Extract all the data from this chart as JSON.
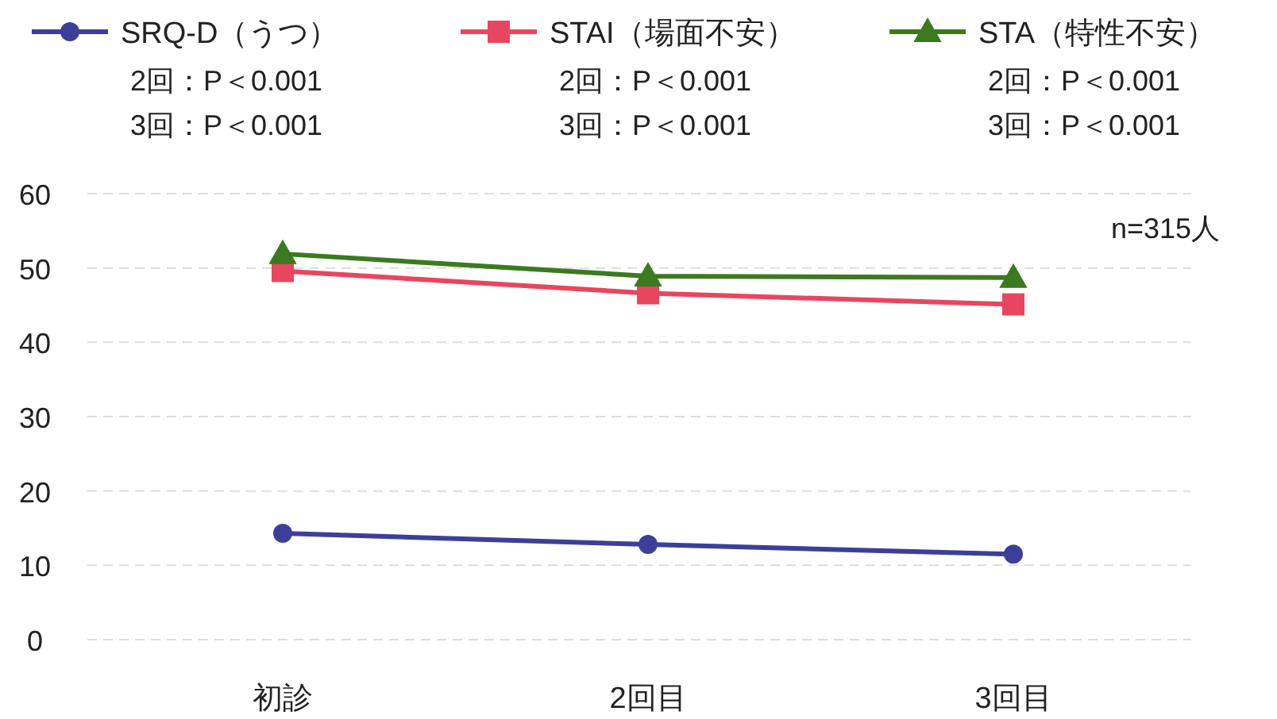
{
  "chart_data": {
    "type": "line",
    "categories": [
      "初診",
      "2回目",
      "3回目"
    ],
    "series": [
      {
        "name": "SRQ-D（うつ）",
        "color": "#3c3f99",
        "marker": "circle",
        "values": [
          14.3,
          12.8,
          11.5
        ]
      },
      {
        "name": "STAI（場面不安）",
        "color": "#e8465e",
        "marker": "square",
        "values": [
          49.6,
          46.6,
          45.1
        ]
      },
      {
        "name": "STA（特性不安）",
        "color": "#3b7a1f",
        "marker": "triangle",
        "values": [
          51.9,
          48.9,
          48.7
        ]
      }
    ],
    "ylim": [
      0,
      60
    ],
    "yticks": [
      0,
      10,
      20,
      30,
      40,
      50,
      60
    ],
    "grid": "y",
    "legend": "top",
    "annotations": [
      "2回：P＜0.001",
      "3回：P＜0.001",
      "2回：P＜0.001",
      "3回：P＜0.001",
      "2回：P＜0.001",
      "3回：P＜0.001",
      "n=315人"
    ]
  }
}
